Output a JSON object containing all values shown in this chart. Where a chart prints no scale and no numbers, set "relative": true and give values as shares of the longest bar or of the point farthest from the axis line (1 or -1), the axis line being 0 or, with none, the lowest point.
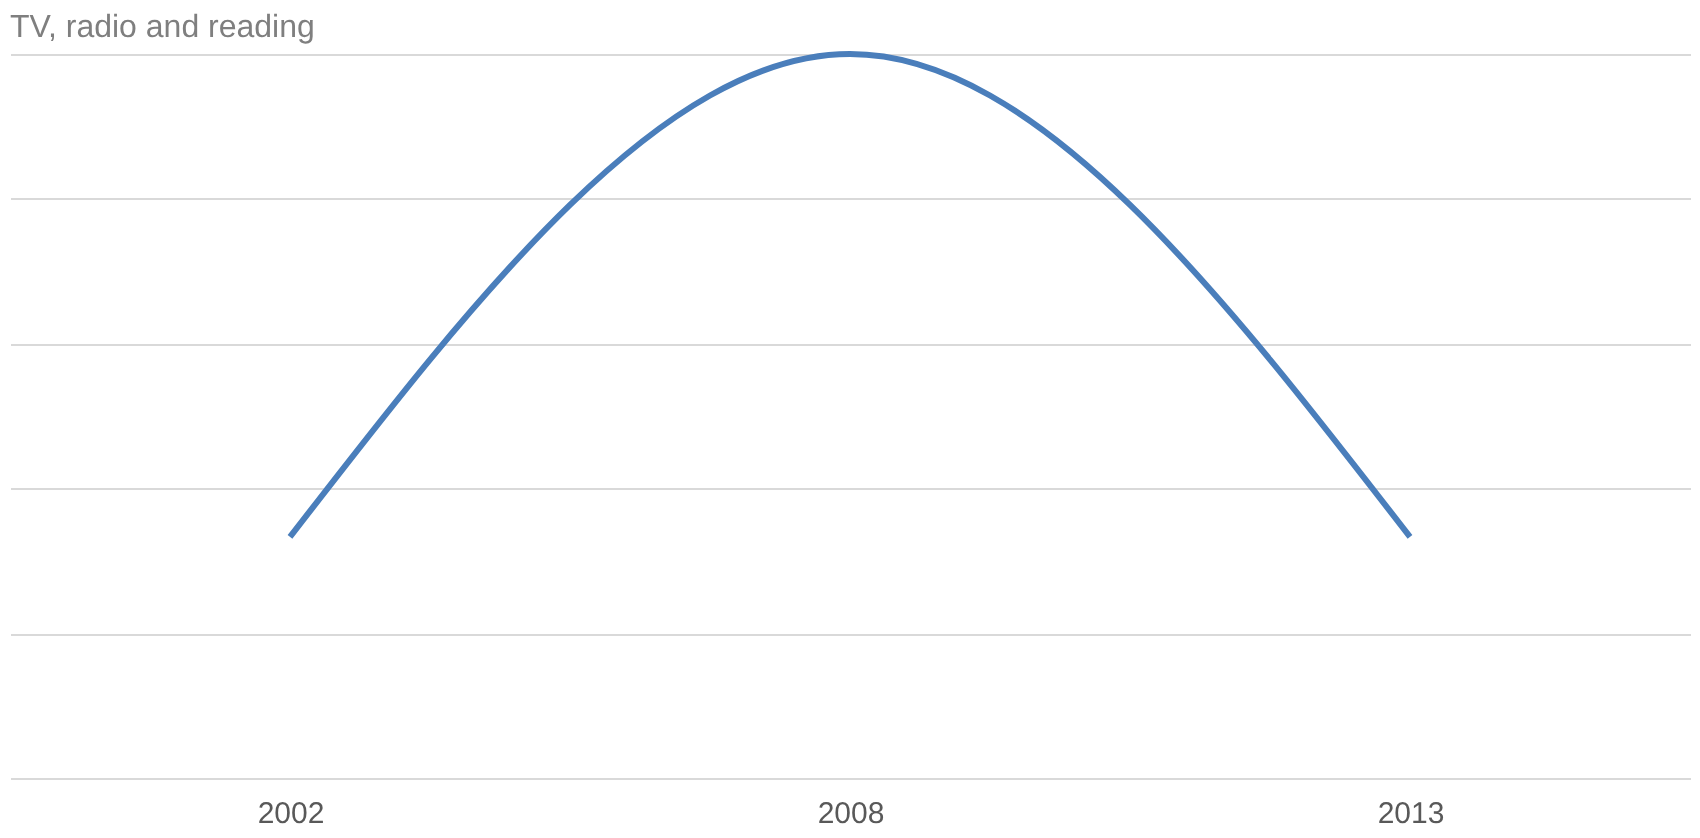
{
  "chart_data": {
    "type": "line",
    "title": "TV, radio and reading",
    "relative": true,
    "grid": "y",
    "marker": "none",
    "line_style": "solid",
    "categories": [
      "2002",
      "2008",
      "2013"
    ],
    "series": [
      {
        "color": "#4a7ebb",
        "values": [
          0.333,
          1,
          0.333
        ]
      }
    ]
  }
}
